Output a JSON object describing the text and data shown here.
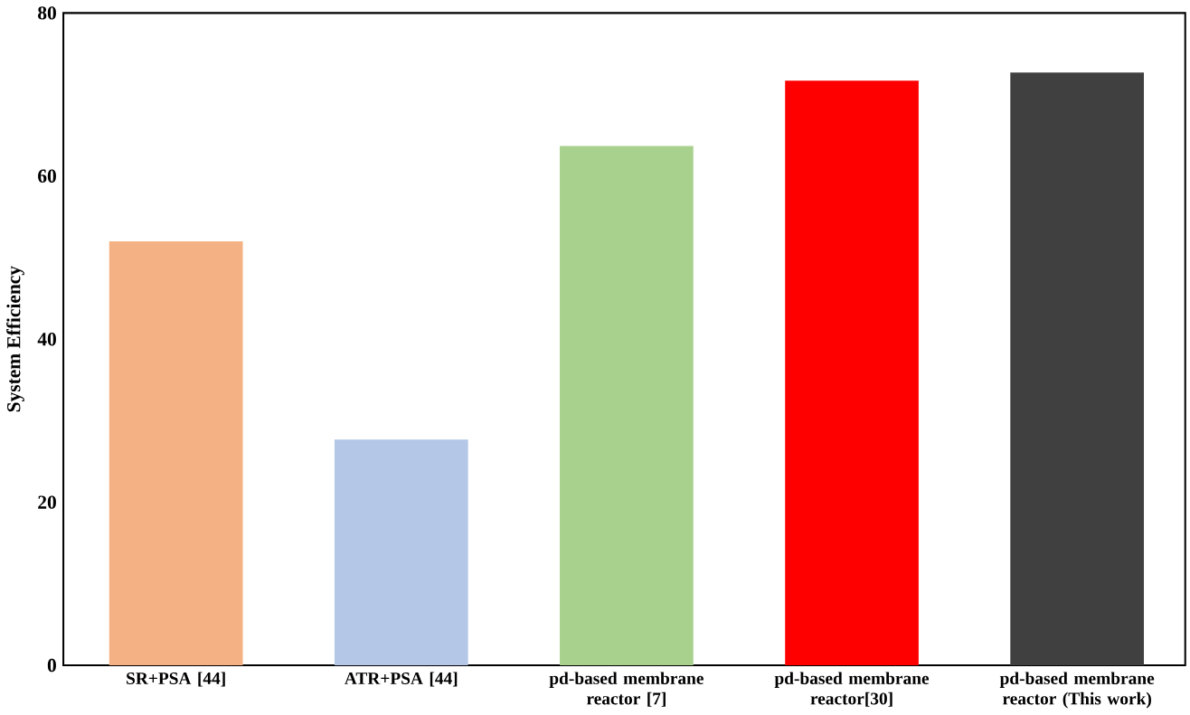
{
  "chart_data": {
    "type": "bar",
    "ylabel": "System Efficiency",
    "categories": [
      "SR+PSA [44]",
      "ATR+PSA [44]",
      "pd-based membrane reactor [7]",
      "pd-based membrane reactor[30]",
      "pd-based membrane reactor (This work)"
    ],
    "values": [
      52,
      27.7,
      63.7,
      71.7,
      72.7
    ],
    "colors": [
      "#f4b183",
      "#b4c7e7",
      "#a9d18e",
      "#ff0000",
      "#404040"
    ],
    "ylim": [
      0,
      80
    ],
    "yticks": [
      0,
      20,
      40,
      60,
      80
    ],
    "grid": false
  }
}
